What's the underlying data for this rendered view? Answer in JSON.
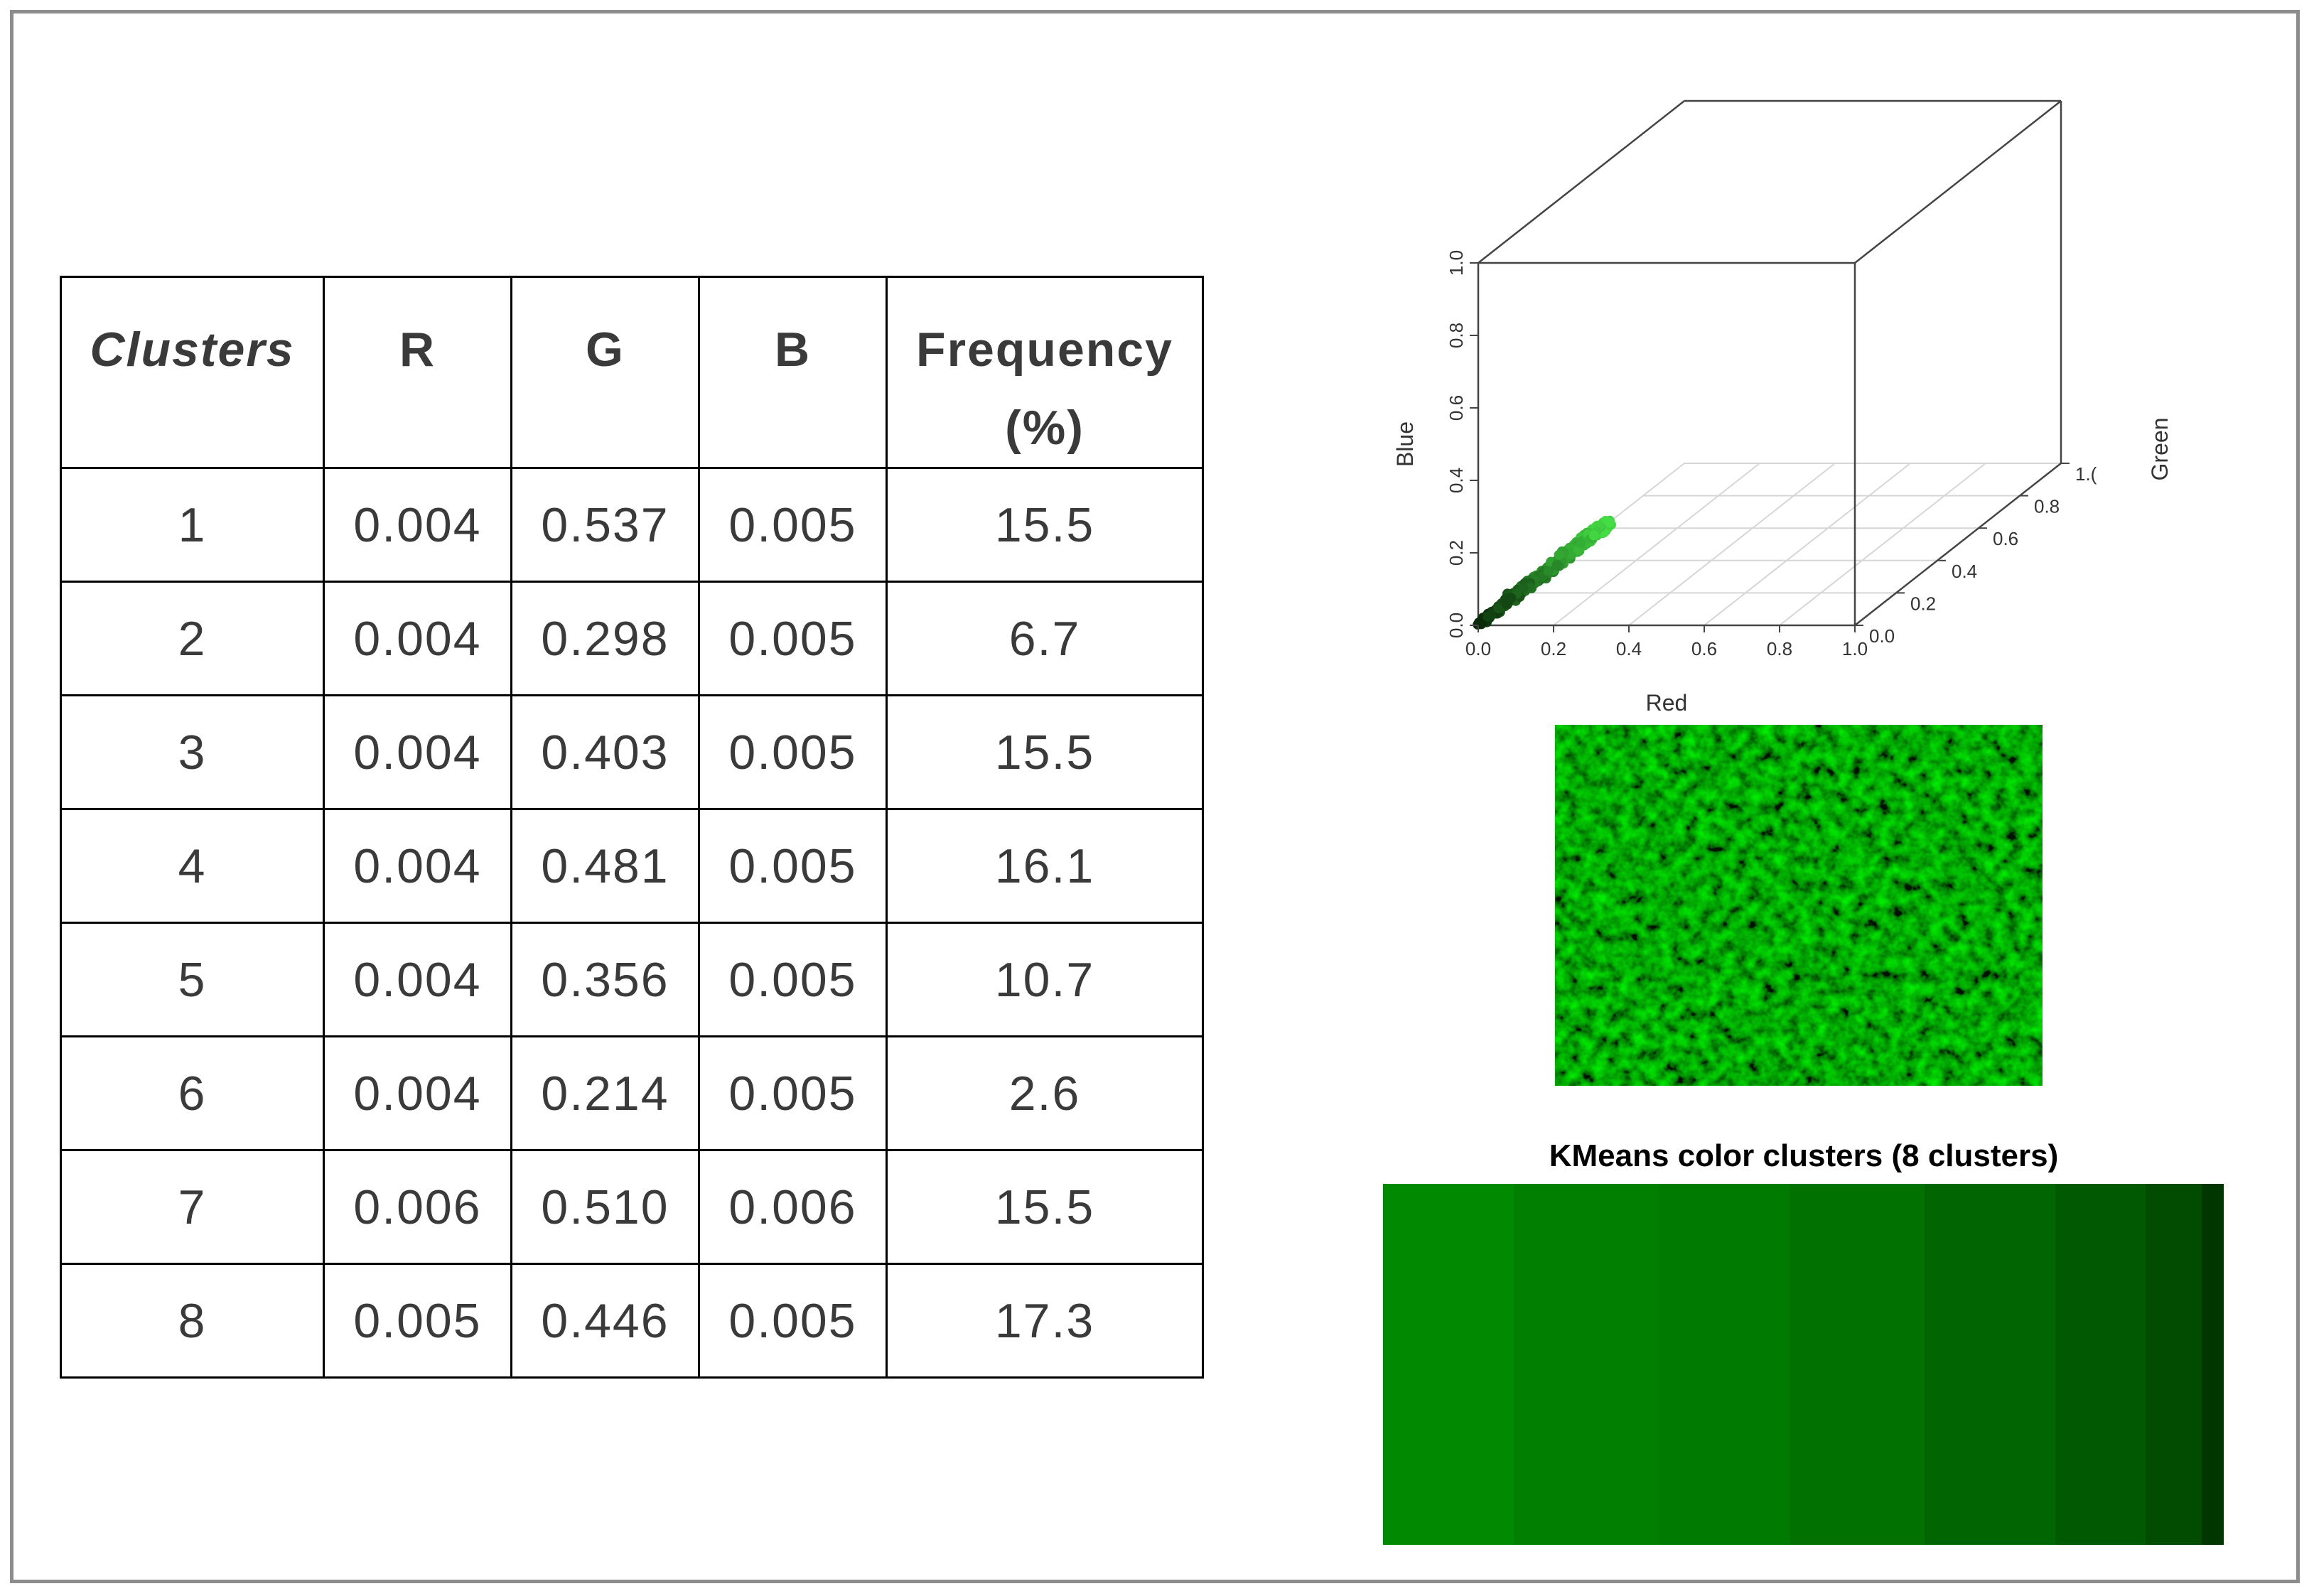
{
  "table": {
    "headers": [
      "Clusters",
      "R",
      "G",
      "B",
      "Frequency\n(%)"
    ],
    "rows": [
      [
        "1",
        "0.004",
        "0.537",
        "0.005",
        "15.5"
      ],
      [
        "2",
        "0.004",
        "0.298",
        "0.005",
        "6.7"
      ],
      [
        "3",
        "0.004",
        "0.403",
        "0.005",
        "15.5"
      ],
      [
        "4",
        "0.004",
        "0.481",
        "0.005",
        "16.1"
      ],
      [
        "5",
        "0.004",
        "0.356",
        "0.005",
        "10.7"
      ],
      [
        "6",
        "0.004",
        "0.214",
        "0.005",
        "2.6"
      ],
      [
        "7",
        "0.006",
        "0.510",
        "0.006",
        "15.5"
      ],
      [
        "8",
        "0.005",
        "0.446",
        "0.005",
        "17.3"
      ]
    ]
  },
  "chart_data": [
    {
      "type": "scatter",
      "title": "",
      "xlabel": "Red",
      "ylabel": "Green",
      "zlabel": "Blue",
      "xlim": [
        0.0,
        1.0
      ],
      "ylim": [
        0.0,
        1.0
      ],
      "zlim": [
        0.0,
        1.0
      ],
      "x_ticks": [
        "0.0",
        "0.2",
        "0.4",
        "0.6",
        "0.8",
        "1.0"
      ],
      "y_ticks": [
        "0.0",
        "0.2",
        "0.4",
        "0.6",
        "0.8",
        "1.("
      ],
      "z_ticks": [
        "0.0",
        "0.2",
        "0.4",
        "0.6",
        "0.8",
        "1.0"
      ],
      "points_description": "pixel colors lying along a line from (0,0,0) to about (0.02, 0.6, 0.02)",
      "point_color_low": "#0a2a0a",
      "point_color_high": "#44dd44"
    },
    {
      "type": "bar",
      "title": "KMeans color clusters (8 clusters)",
      "segments": [
        {
          "color": "#018901",
          "share": 0.155
        },
        {
          "color": "#017f01",
          "share": 0.173
        },
        {
          "color": "#017a01",
          "share": 0.155
        },
        {
          "color": "#017201",
          "share": 0.161
        },
        {
          "color": "#016601",
          "share": 0.155
        },
        {
          "color": "#015a01",
          "share": 0.107
        },
        {
          "color": "#014c01",
          "share": 0.067
        },
        {
          "color": "#013601",
          "share": 0.026
        }
      ]
    }
  ],
  "texture": {
    "base_color": "#0f7a0f"
  }
}
